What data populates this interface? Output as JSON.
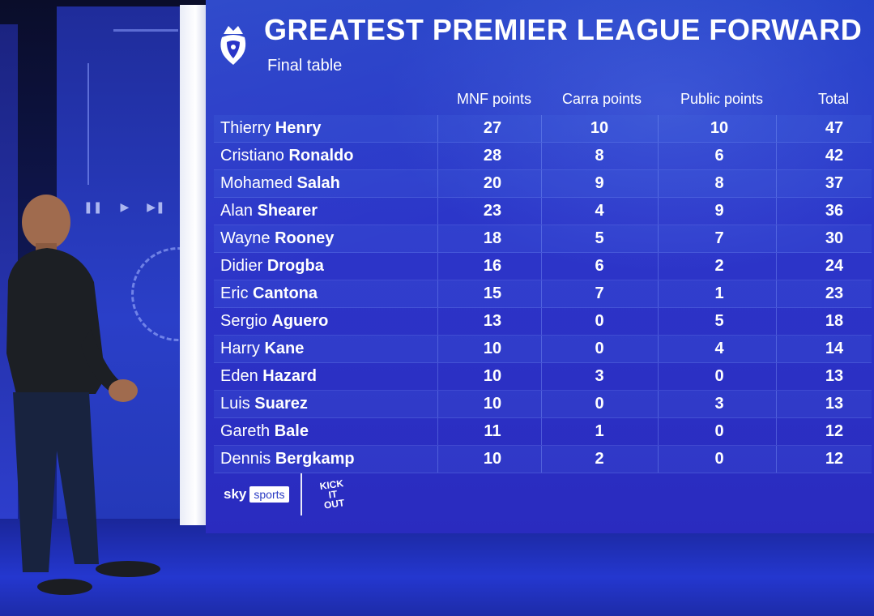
{
  "header": {
    "title": "GREATEST PREMIER LEAGUE FORWARD",
    "subtitle": "Final table"
  },
  "columns": [
    "MNF points",
    "Carra points",
    "Public points",
    "Total"
  ],
  "rows": [
    {
      "first": "Thierry",
      "last": "Henry",
      "mnf": "27",
      "carra": "10",
      "public": "10",
      "total": "47"
    },
    {
      "first": "Cristiano",
      "last": "Ronaldo",
      "mnf": "28",
      "carra": "8",
      "public": "6",
      "total": "42"
    },
    {
      "first": "Mohamed",
      "last": "Salah",
      "mnf": "20",
      "carra": "9",
      "public": "8",
      "total": "37"
    },
    {
      "first": "Alan",
      "last": "Shearer",
      "mnf": "23",
      "carra": "4",
      "public": "9",
      "total": "36"
    },
    {
      "first": "Wayne",
      "last": "Rooney",
      "mnf": "18",
      "carra": "5",
      "public": "7",
      "total": "30"
    },
    {
      "first": "Didier",
      "last": "Drogba",
      "mnf": "16",
      "carra": "6",
      "public": "2",
      "total": "24"
    },
    {
      "first": "Eric",
      "last": "Cantona",
      "mnf": "15",
      "carra": "7",
      "public": "1",
      "total": "23"
    },
    {
      "first": "Sergio",
      "last": "Aguero",
      "mnf": "13",
      "carra": "0",
      "public": "5",
      "total": "18"
    },
    {
      "first": "Harry",
      "last": "Kane",
      "mnf": "10",
      "carra": "0",
      "public": "4",
      "total": "14"
    },
    {
      "first": "Eden",
      "last": "Hazard",
      "mnf": "10",
      "carra": "3",
      "public": "0",
      "total": "13"
    },
    {
      "first": "Luis",
      "last": "Suarez",
      "mnf": "10",
      "carra": "0",
      "public": "3",
      "total": "13"
    },
    {
      "first": "Gareth",
      "last": "Bale",
      "mnf": "11",
      "carra": "1",
      "public": "0",
      "total": "12"
    },
    {
      "first": "Dennis",
      "last": "Bergkamp",
      "mnf": "10",
      "carra": "2",
      "public": "0",
      "total": "12"
    }
  ],
  "footer": {
    "sky_word": "sky",
    "sports_word": "sports",
    "kick_it_out": [
      "KICK",
      "IT",
      "OUT"
    ]
  },
  "colors": {
    "screen": "#2a35c8",
    "text": "#ffffff"
  },
  "icons": {
    "league_logo": "premier-league-lion-icon",
    "studio_controls": [
      "pause-icon",
      "play-icon",
      "skip-icon"
    ]
  }
}
